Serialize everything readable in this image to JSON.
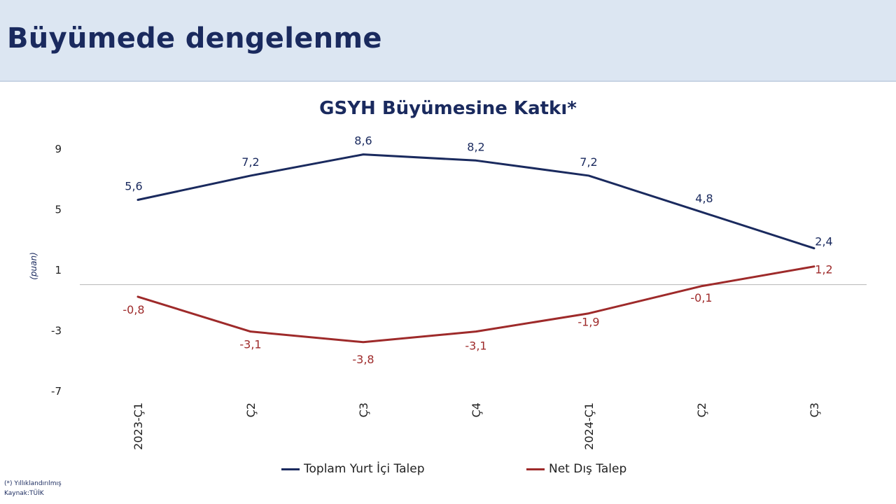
{
  "page": {
    "title": "Büyümede dengelenme"
  },
  "chart_data": {
    "type": "line",
    "title": "GSYH Büyümesine Katkı*",
    "ylabel": "(puan)",
    "ylim": [
      -7,
      9
    ],
    "yticks": [
      9,
      5,
      1,
      -3,
      -7
    ],
    "categories": [
      "2023-Ç1",
      "Ç2",
      "Ç3",
      "Ç4",
      "2024-Ç1",
      "Ç2",
      "Ç3"
    ],
    "series": [
      {
        "name": "Toplam Yurt İçi Talep",
        "color": "#1a2a5e",
        "values": [
          5.6,
          7.2,
          8.6,
          8.2,
          7.2,
          4.8,
          2.4
        ],
        "labels": [
          "5,6",
          "7,2",
          "8,6",
          "8,2",
          "7,2",
          "4,8",
          "2,4"
        ]
      },
      {
        "name": "Net Dış Talep",
        "color": "#9e2a2a",
        "values": [
          -0.8,
          -3.1,
          -3.8,
          -3.1,
          -1.9,
          -0.1,
          1.2
        ],
        "labels": [
          "-0,8",
          "-3,1",
          "-3,8",
          "-3,1",
          "-1,9",
          "-0,1",
          "1,2"
        ]
      }
    ],
    "grid": false,
    "legend_position": "bottom"
  },
  "footnotes": {
    "note": "(*) Yıllıklandırılmış",
    "source": "Kaynak:TÜİK"
  }
}
